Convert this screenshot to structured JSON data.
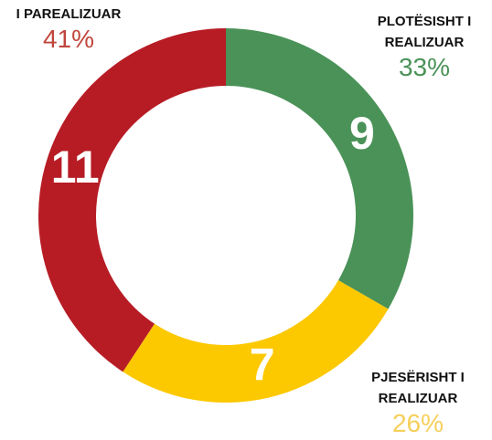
{
  "chart_data": {
    "type": "donut",
    "categories": [
      "PLOTËSISHT I REALIZUAR",
      "PJESËRISHT I REALIZUAR",
      "I PAREALIZUAR"
    ],
    "values": [
      9,
      7,
      11
    ],
    "percent_labels": [
      "33%",
      "26%",
      "41%"
    ],
    "colors": [
      "#4a9258",
      "#fcc800",
      "#b71c25"
    ],
    "label_colors": [
      "#4a9258",
      "#f5cf5a",
      "#c0463c"
    ]
  }
}
